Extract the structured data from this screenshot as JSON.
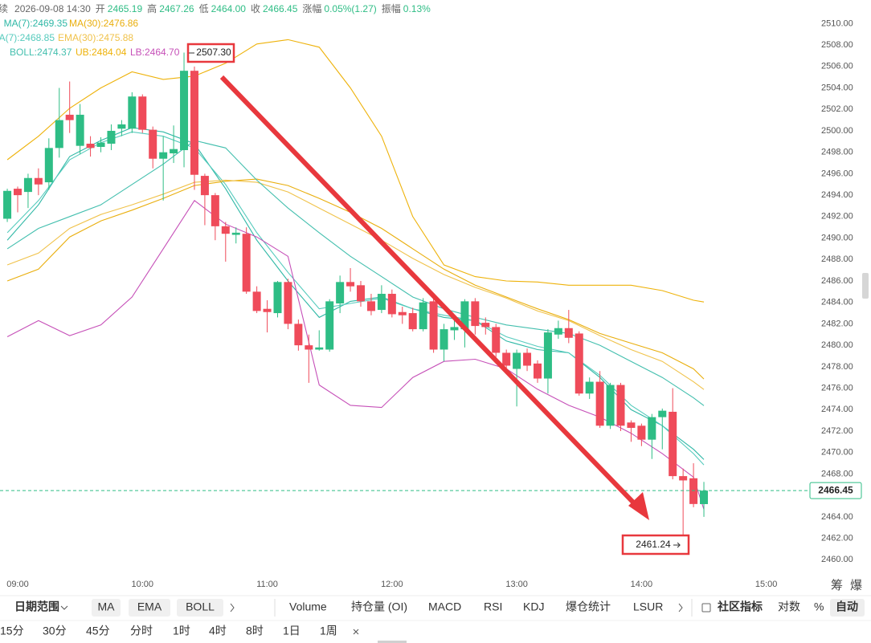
{
  "chart_data": {
    "type": "candlestick",
    "header": {
      "prefix": "续",
      "time": "2026-09-08 14:30",
      "items": [
        {
          "label": "开",
          "value": "2465.19"
        },
        {
          "label": "高",
          "value": "2467.26"
        },
        {
          "label": "低",
          "value": "2464.00"
        },
        {
          "label": "收",
          "value": "2466.45"
        },
        {
          "label": "涨幅",
          "value": "0.05%(1.27)"
        },
        {
          "label": "振幅",
          "value": "0.13%"
        }
      ]
    },
    "colors": {
      "up": "#2ebd85",
      "down": "#ef4b5a"
    },
    "x": [
      535,
      540,
      545,
      550,
      555,
      560,
      565,
      570,
      575,
      580,
      585,
      590,
      595,
      600,
      605,
      610,
      615,
      620,
      625,
      630,
      635,
      640,
      645,
      650,
      655,
      660,
      665,
      670,
      675,
      680,
      685,
      690,
      695,
      700,
      705,
      710,
      715,
      720,
      725,
      730,
      735,
      740,
      745,
      750,
      755,
      760,
      765,
      770,
      775,
      780,
      785,
      790,
      795,
      800,
      805,
      810,
      815,
      820,
      825,
      830,
      835,
      840,
      845,
      850,
      855,
      860,
      865,
      870
    ],
    "open": [
      2491.8,
      2494.6,
      2494.3,
      2495.6,
      2495.2,
      2498.4,
      2501.5,
      2498.6,
      2498.8,
      2498.5,
      2498.8,
      2500.2,
      2500.2,
      2503.2,
      2500.1,
      2497.4,
      2497.9,
      2498.2,
      2505.6,
      2495.8,
      2494.0,
      2491.1,
      2490.3,
      2490.4,
      2485.0,
      2483.4,
      2483.0,
      2485.9,
      2482.0,
      2480.0,
      2479.6,
      2479.6,
      2483.9,
      2485.9,
      2485.6,
      2484.1,
      2483.3,
      2484.8,
      2483.1,
      2483.0,
      2481.5,
      2484.1,
      2479.6,
      2481.4,
      2481.5,
      2484.1,
      2482.1,
      2481.7,
      2479.3,
      2477.8,
      2479.3,
      2478.3,
      2476.9,
      2481.0,
      2481.6,
      2481.1,
      2475.5,
      2476.6,
      2472.5,
      2476.3,
      2472.8,
      2472.5,
      2471.2,
      2473.3,
      2473.8,
      2467.8,
      2467.6,
      2465.19
    ],
    "high": [
      2494.6,
      2494.8,
      2496.0,
      2496.5,
      2499.3,
      2504.0,
      2504.6,
      2502.5,
      2499.5,
      2499.4,
      2500.6,
      2501.0,
      2503.6,
      2503.4,
      2500.4,
      2499.5,
      2500.5,
      2507.3,
      2506.0,
      2496.0,
      2494.2,
      2491.5,
      2491.0,
      2491.0,
      2485.5,
      2484.2,
      2486.0,
      2486.2,
      2482.4,
      2481.0,
      2481.4,
      2484.3,
      2486.5,
      2487.2,
      2486.0,
      2484.8,
      2485.6,
      2485.2,
      2483.6,
      2483.5,
      2484.4,
      2484.4,
      2482.0,
      2482.6,
      2484.3,
      2484.4,
      2482.6,
      2482.0,
      2479.6,
      2479.6,
      2479.7,
      2478.6,
      2481.5,
      2482.3,
      2483.3,
      2481.3,
      2477.0,
      2477.6,
      2476.5,
      2476.5,
      2473.0,
      2472.7,
      2473.6,
      2474.1,
      2476.0,
      2468.5,
      2469.0,
      2467.26
    ],
    "low": [
      2491.5,
      2492.4,
      2492.8,
      2494.0,
      2494.5,
      2497.5,
      2499.8,
      2497.8,
      2497.6,
      2498.0,
      2498.2,
      2499.5,
      2499.8,
      2499.8,
      2496.5,
      2493.5,
      2497.0,
      2496.6,
      2494.5,
      2491.2,
      2489.8,
      2487.8,
      2489.5,
      2484.8,
      2483.0,
      2481.2,
      2482.6,
      2481.5,
      2479.5,
      2476.5,
      2479.5,
      2479.4,
      2483.0,
      2485.0,
      2483.6,
      2482.8,
      2483.0,
      2482.6,
      2482.0,
      2481.3,
      2481.3,
      2479.3,
      2478.5,
      2480.5,
      2479.8,
      2481.0,
      2481.0,
      2478.9,
      2477.5,
      2474.3,
      2477.6,
      2476.5,
      2475.5,
      2480.6,
      2480.2,
      2475.3,
      2475.0,
      2472.3,
      2472.2,
      2472.0,
      2471.0,
      2470.6,
      2469.4,
      2470.3,
      2467.5,
      2461.24,
      2464.9,
      2464.0
    ],
    "close": [
      2494.4,
      2494.0,
      2495.6,
      2495.0,
      2498.4,
      2501.0,
      2501.0,
      2501.5,
      2498.4,
      2498.9,
      2500.0,
      2500.6,
      2503.2,
      2500.1,
      2497.4,
      2498.0,
      2498.3,
      2505.6,
      2495.9,
      2494.0,
      2491.1,
      2490.4,
      2490.5,
      2485.0,
      2483.2,
      2483.1,
      2485.9,
      2482.0,
      2480.0,
      2479.6,
      2479.8,
      2484.1,
      2485.9,
      2485.5,
      2484.1,
      2483.2,
      2484.8,
      2482.9,
      2482.8,
      2481.5,
      2484.0,
      2479.6,
      2481.5,
      2481.7,
      2484.1,
      2481.8,
      2481.7,
      2479.3,
      2478.1,
      2479.3,
      2478.1,
      2476.9,
      2481.2,
      2481.6,
      2480.7,
      2475.5,
      2476.6,
      2472.5,
      2476.3,
      2472.5,
      2472.3,
      2471.2,
      2473.3,
      2473.9,
      2467.8,
      2467.4,
      2465.2,
      2466.45
    ],
    "lines": {
      "x": [
        535,
        550,
        565,
        580,
        595,
        610,
        625,
        640,
        655,
        670,
        685,
        700,
        715,
        730,
        745,
        760,
        775,
        790,
        805,
        820,
        835,
        850,
        865,
        870
      ],
      "series": [
        {
          "name": "MA(7):2469.35",
          "color": "#2fb8a6",
          "values": [
            2489.8,
            2493.1,
            2497.6,
            2499.1,
            2500.3,
            2499.9,
            2498.8,
            2494.6,
            2489.8,
            2486.0,
            2482.6,
            2484.1,
            2484.5,
            2483.4,
            2482.6,
            2482.3,
            2480.4,
            2479.6,
            2479.3,
            2477.0,
            2474.0,
            2472.5,
            2470.3,
            2469.35
          ]
        },
        {
          "name": "MA(30):2476.86",
          "color": "#e9ae0c",
          "values": [
            2486.0,
            2487.1,
            2490.1,
            2491.6,
            2492.6,
            2493.7,
            2494.9,
            2495.3,
            2495.5,
            2494.9,
            2493.7,
            2492.4,
            2490.9,
            2489.0,
            2487.1,
            2485.6,
            2484.5,
            2483.4,
            2482.4,
            2481.1,
            2480.2,
            2479.3,
            2477.8,
            2476.86
          ]
        },
        {
          "name": "EMA(7):2468.85",
          "color": "#56cbbd",
          "values": [
            2490.5,
            2493.5,
            2497.3,
            2498.9,
            2499.9,
            2499.5,
            2498.4,
            2495.0,
            2490.5,
            2486.8,
            2483.4,
            2483.9,
            2484.4,
            2483.4,
            2482.8,
            2482.3,
            2480.8,
            2479.9,
            2479.3,
            2477.2,
            2474.4,
            2472.5,
            2469.9,
            2468.85
          ]
        },
        {
          "name": "EMA(30):2475.88",
          "color": "#f0c24a",
          "values": [
            2487.5,
            2488.6,
            2490.9,
            2492.2,
            2493.1,
            2494.1,
            2495.2,
            2495.4,
            2495.2,
            2494.3,
            2492.8,
            2491.3,
            2489.8,
            2488.1,
            2486.6,
            2485.4,
            2484.4,
            2483.2,
            2482.3,
            2480.9,
            2479.6,
            2478.5,
            2476.6,
            2475.88
          ]
        },
        {
          "name": "BOLL:2474.37",
          "color": "#43bfae",
          "values": [
            2489.0,
            2490.9,
            2492.0,
            2493.1,
            2495.0,
            2496.9,
            2499.1,
            2498.4,
            2495.4,
            2492.8,
            2490.5,
            2488.3,
            2486.4,
            2484.5,
            2483.4,
            2482.6,
            2481.9,
            2481.5,
            2481.1,
            2480.0,
            2478.5,
            2477.0,
            2475.1,
            2474.37
          ]
        },
        {
          "name": "UB:2484.04",
          "color": "#eeb20a",
          "values": [
            2497.3,
            2499.5,
            2502.1,
            2504.0,
            2505.5,
            2504.8,
            2505.1,
            2506.3,
            2508.1,
            2508.5,
            2507.8,
            2504.0,
            2499.5,
            2492.0,
            2487.5,
            2486.4,
            2486.0,
            2485.9,
            2485.6,
            2485.6,
            2485.6,
            2485.1,
            2484.2,
            2484.04
          ]
        },
        {
          "name": "LB:2464.70",
          "color": "#c650b8",
          "values": [
            2480.8,
            2482.3,
            2480.9,
            2481.9,
            2484.5,
            2489.0,
            2493.5,
            2491.3,
            2490.1,
            2488.3,
            2476.3,
            2474.4,
            2474.2,
            2477.0,
            2478.5,
            2478.7,
            2477.8,
            2475.9,
            2474.4,
            2473.3,
            2471.8,
            2469.9,
            2467.7,
            2464.7
          ]
        }
      ]
    },
    "max_label": "2507.30",
    "min_label": "2461.24",
    "last_price": {
      "value": 2466.45,
      "label": "2466.45"
    },
    "xlim": [
      531.5,
      923.7
    ],
    "xticks": [
      {
        "value": 540,
        "label": "09:00"
      },
      {
        "value": 600,
        "label": "10:00"
      },
      {
        "value": 660,
        "label": "11:00"
      },
      {
        "value": 720,
        "label": "12:00"
      },
      {
        "value": 780,
        "label": "13:00"
      },
      {
        "value": 840,
        "label": "14:00"
      },
      {
        "value": 900,
        "label": "15:00"
      }
    ],
    "ylim": [
      2458.9,
      2512.2
    ],
    "yticks": [
      {
        "value": 2460,
        "label": "2460.00"
      },
      {
        "value": 2462,
        "label": "2462.00"
      },
      {
        "value": 2464,
        "label": "2464.00"
      },
      {
        "value": 2466,
        "label": "2466.00"
      },
      {
        "value": 2468,
        "label": "2468.00"
      },
      {
        "value": 2470,
        "label": "2470.00"
      },
      {
        "value": 2472,
        "label": "2472.00"
      },
      {
        "value": 2474,
        "label": "2474.00"
      },
      {
        "value": 2476,
        "label": "2476.00"
      },
      {
        "value": 2478,
        "label": "2478.00"
      },
      {
        "value": 2480,
        "label": "2480.00"
      },
      {
        "value": 2482,
        "label": "2482.00"
      },
      {
        "value": 2484,
        "label": "2484.00"
      },
      {
        "value": 2486,
        "label": "2486.00"
      },
      {
        "value": 2488,
        "label": "2488.00"
      },
      {
        "value": 2490,
        "label": "2490.00"
      },
      {
        "value": 2492,
        "label": "2492.00"
      },
      {
        "value": 2494,
        "label": "2494.00"
      },
      {
        "value": 2496,
        "label": "2496.00"
      },
      {
        "value": 2498,
        "label": "2498.00"
      },
      {
        "value": 2500,
        "label": "2500.00"
      },
      {
        "value": 2502,
        "label": "2502.00"
      },
      {
        "value": 2504,
        "label": "2504.00"
      },
      {
        "value": 2506,
        "label": "2506.00"
      },
      {
        "value": 2508,
        "label": "2508.00"
      },
      {
        "value": 2510,
        "label": "2510.00"
      }
    ],
    "grid": false
  },
  "toolbar": {
    "date_range": "日期范围",
    "overlays": [
      "MA",
      "EMA",
      "BOLL"
    ],
    "indicators": [
      "Volume",
      "持仓量 (OI)",
      "MACD",
      "RSI",
      "KDJ",
      "爆仓统计",
      "LSUR"
    ],
    "community": "社区指标",
    "log": "对数",
    "percent": "%",
    "auto": "自动"
  },
  "intervals": [
    "15分",
    "30分",
    "45分",
    "分时",
    "1时",
    "4时",
    "8时",
    "1日",
    "1周"
  ],
  "side_tabs": [
    "筹",
    "爆"
  ]
}
